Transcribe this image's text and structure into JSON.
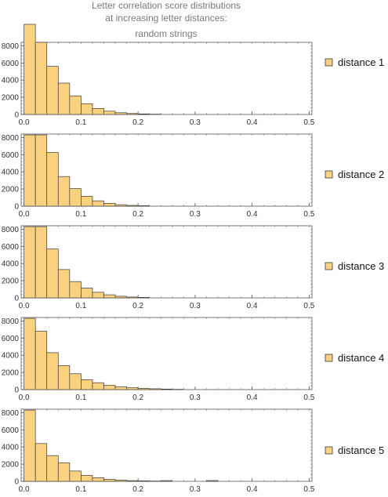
{
  "title_lines": [
    "Letter correlation score distributions",
    "at increasing letter distances:",
    "random strings"
  ],
  "colors": {
    "bar_fill": "#FAD17F",
    "bar_stroke": "#3a3a3a",
    "frame": "#555555",
    "title": "#7a7a7a"
  },
  "chart_data": [
    {
      "type": "bar",
      "histogram": true,
      "bin_width": 0.02,
      "bin_starts": [
        0.0,
        0.02,
        0.04,
        0.06,
        0.08,
        0.1,
        0.12,
        0.14,
        0.16,
        0.18,
        0.2,
        0.22
      ],
      "values": [
        10500,
        8400,
        5600,
        3650,
        2150,
        1250,
        700,
        380,
        200,
        110,
        60,
        30
      ],
      "series": [
        {
          "name": "distance 1"
        }
      ],
      "xlim": [
        -0.005,
        0.505
      ],
      "ylim": [
        0,
        8400
      ],
      "xticks": [
        "0.0",
        "0.1",
        "0.2",
        "0.3",
        "0.4",
        "0.5"
      ],
      "yticks": [
        "0",
        "2000",
        "4000",
        "6000",
        "8000"
      ],
      "legend_position": "right"
    },
    {
      "type": "bar",
      "histogram": true,
      "bin_width": 0.02,
      "bin_starts": [
        0.0,
        0.02,
        0.04,
        0.06,
        0.08,
        0.1,
        0.12,
        0.14,
        0.16,
        0.18,
        0.2,
        0.22
      ],
      "values": [
        8300,
        8300,
        6250,
        3450,
        2050,
        1150,
        620,
        330,
        170,
        90,
        50,
        20
      ],
      "series": [
        {
          "name": "distance 2"
        }
      ],
      "xlim": [
        -0.005,
        0.505
      ],
      "ylim": [
        0,
        8400
      ],
      "xticks": [
        "0.0",
        "0.1",
        "0.2",
        "0.3",
        "0.4",
        "0.5"
      ],
      "yticks": [
        "0",
        "2000",
        "4000",
        "6000",
        "8000"
      ],
      "legend_position": "right"
    },
    {
      "type": "bar",
      "histogram": true,
      "bin_width": 0.02,
      "bin_starts": [
        0.0,
        0.02,
        0.04,
        0.06,
        0.08,
        0.1,
        0.12,
        0.14,
        0.16,
        0.18,
        0.2,
        0.22
      ],
      "values": [
        8300,
        8300,
        5700,
        3300,
        1900,
        1150,
        650,
        360,
        190,
        100,
        55,
        25
      ],
      "series": [
        {
          "name": "distance 3"
        }
      ],
      "xlim": [
        -0.005,
        0.505
      ],
      "ylim": [
        0,
        8400
      ],
      "xticks": [
        "0.0",
        "0.1",
        "0.2",
        "0.3",
        "0.4",
        "0.5"
      ],
      "yticks": [
        "0",
        "2000",
        "4000",
        "6000",
        "8000"
      ],
      "legend_position": "right"
    },
    {
      "type": "bar",
      "histogram": true,
      "bin_width": 0.02,
      "bin_starts": [
        0.0,
        0.02,
        0.04,
        0.06,
        0.08,
        0.1,
        0.12,
        0.14,
        0.16,
        0.18,
        0.2,
        0.22,
        0.24,
        0.26,
        0.28
      ],
      "values": [
        8300,
        6800,
        4300,
        2800,
        1850,
        1150,
        800,
        500,
        320,
        220,
        150,
        100,
        60,
        30,
        10
      ],
      "series": [
        {
          "name": "distance 4"
        }
      ],
      "xlim": [
        -0.005,
        0.505
      ],
      "ylim": [
        0,
        8400
      ],
      "xticks": [
        "0.0",
        "0.1",
        "0.2",
        "0.3",
        "0.4",
        "0.5"
      ],
      "yticks": [
        "0",
        "2000",
        "4000",
        "6000",
        "8000"
      ],
      "legend_position": "right"
    },
    {
      "type": "bar",
      "histogram": true,
      "bin_width": 0.02,
      "bin_starts": [
        0.0,
        0.02,
        0.04,
        0.06,
        0.08,
        0.1,
        0.12,
        0.14,
        0.16,
        0.18,
        0.2,
        0.22,
        0.24,
        0.26,
        0.28,
        0.3,
        0.32
      ],
      "values": [
        8300,
        4400,
        3000,
        2150,
        1200,
        700,
        420,
        230,
        140,
        80,
        50,
        30,
        80,
        20,
        10,
        5,
        90
      ],
      "series": [
        {
          "name": "distance 5"
        }
      ],
      "xlim": [
        -0.005,
        0.505
      ],
      "ylim": [
        0,
        8400
      ],
      "xticks": [
        "0.0",
        "0.1",
        "0.2",
        "0.3",
        "0.4",
        "0.5"
      ],
      "yticks": [
        "0",
        "2000",
        "4000",
        "6000",
        "8000"
      ],
      "legend_position": "right"
    }
  ]
}
